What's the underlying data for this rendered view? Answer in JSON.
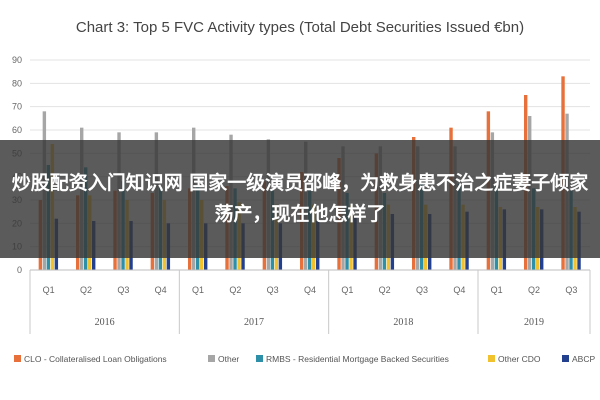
{
  "chart_data": {
    "type": "bar",
    "title": "Chart 3: Top 5 FVC Activity types (Total Debt Securities Issued €bn)",
    "ylim": [
      0,
      90
    ],
    "yticks": [
      0,
      10,
      20,
      30,
      40,
      50,
      60,
      70,
      80,
      90
    ],
    "categories": [
      "Q1",
      "Q2",
      "Q3",
      "Q4",
      "Q1",
      "Q2",
      "Q3",
      "Q4",
      "Q1",
      "Q2",
      "Q3",
      "Q4",
      "Q1",
      "Q2",
      "Q3"
    ],
    "years": [
      {
        "label": "2016",
        "count": 4
      },
      {
        "label": "2017",
        "count": 4
      },
      {
        "label": "2018",
        "count": 4
      },
      {
        "label": "2019",
        "count": 3
      }
    ],
    "grid": true,
    "legend_position": "bottom",
    "series": [
      {
        "name": "CLO - Collateralised Loan Obligations",
        "color": "#e8703a",
        "values": [
          30,
          32,
          34,
          33,
          35,
          36,
          38,
          42,
          48,
          50,
          57,
          61,
          68,
          75,
          83
        ]
      },
      {
        "name": "Other",
        "color": "#a6a6a6",
        "values": [
          68,
          61,
          59,
          59,
          61,
          58,
          56,
          55,
          53,
          53,
          53,
          53,
          59,
          66,
          67
        ]
      },
      {
        "name": "RMBS - Residential Mortgage Backed Securities",
        "color": "#2e8fa8",
        "values": [
          45,
          44,
          38,
          36,
          36,
          35,
          34,
          34,
          33,
          33,
          37,
          37,
          36,
          35,
          34
        ]
      },
      {
        "name": "Other CDO",
        "color": "#f2c12e",
        "values": [
          54,
          32,
          30,
          30,
          30,
          29,
          28,
          28,
          28,
          28,
          28,
          28,
          27,
          27,
          27
        ]
      },
      {
        "name": "ABCP",
        "color": "#23408e",
        "values": [
          22,
          21,
          21,
          20,
          20,
          20,
          20,
          21,
          23,
          24,
          24,
          25,
          26,
          26,
          25
        ]
      }
    ]
  },
  "overlay": {
    "headline": "炒股配资入门知识网 国家一级演员邵峰，为救身患不治之症妻子倾家荡产，现在他怎样了"
  }
}
